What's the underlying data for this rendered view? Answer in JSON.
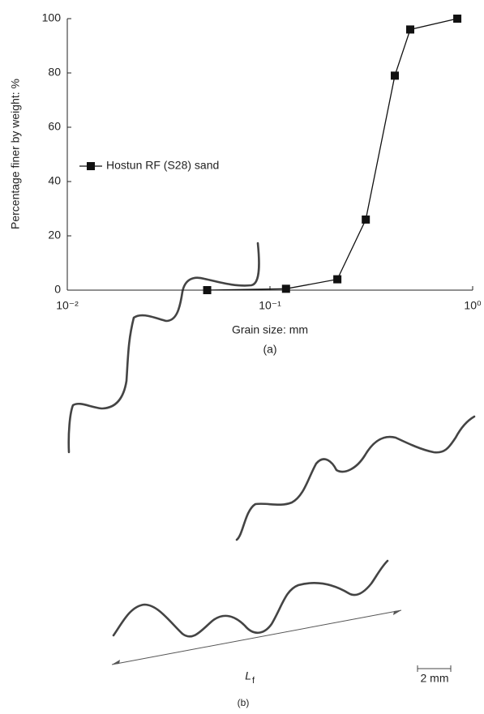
{
  "chart_data": {
    "type": "line",
    "x_label": "Grain size: mm",
    "y_label": "Percentage finer by weight: %",
    "panel_label": "(a)",
    "x": [
      0.049,
      0.12,
      0.215,
      0.297,
      0.413,
      0.492,
      0.84
    ],
    "series": [
      {
        "name": "Hostun RF (S28) sand",
        "color": "#111111",
        "values": [
          0,
          0.5,
          4,
          26,
          79,
          96,
          100
        ]
      }
    ],
    "xscale": "log",
    "xlim": [
      0.01,
      1
    ],
    "xticks": [
      {
        "value": 0.01,
        "label": "10⁻²"
      },
      {
        "value": 0.1,
        "label": "10⁻¹"
      },
      {
        "value": 1,
        "label": "10⁰"
      }
    ],
    "ylim": [
      0,
      100
    ],
    "yticks": [
      0,
      20,
      40,
      60,
      80,
      100
    ],
    "grid": false,
    "legend": "left"
  },
  "figure_b": {
    "length_symbol": "L",
    "length_subscript": "f",
    "scale_bar": "2 mm",
    "panel_label": "(b)"
  }
}
